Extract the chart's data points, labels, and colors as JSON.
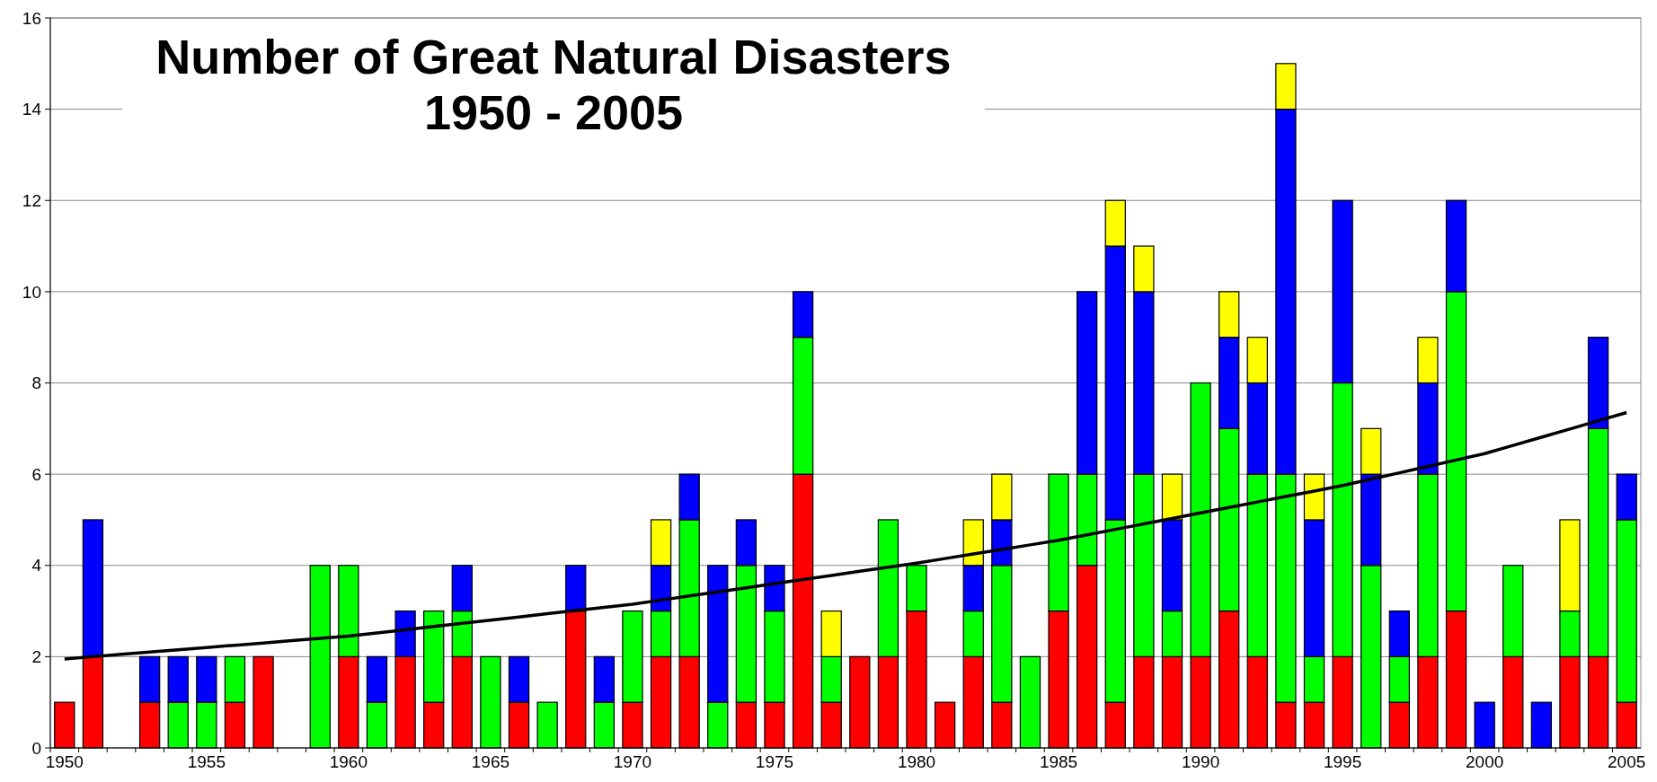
{
  "chart_data": {
    "type": "bar",
    "title": "Number of Great Natural Disasters\n1950 - 2005",
    "stacked": true,
    "grid": "y",
    "categories": [
      "1950",
      null,
      null,
      null,
      null,
      "1955",
      null,
      null,
      null,
      null,
      "1960",
      null,
      null,
      null,
      null,
      "1965",
      null,
      null,
      null,
      null,
      "1970",
      null,
      null,
      null,
      null,
      "1975",
      null,
      null,
      null,
      null,
      "1980",
      null,
      null,
      null,
      null,
      "1985",
      null,
      null,
      null,
      null,
      "1990",
      null,
      null,
      null,
      null,
      "1995",
      null,
      null,
      null,
      null,
      "2000",
      null,
      null,
      null,
      null,
      "2005"
    ],
    "ylim": [
      0,
      16
    ],
    "yticks": [
      0,
      2,
      4,
      6,
      8,
      10,
      12,
      14,
      16
    ],
    "series": [
      {
        "color": "#ff0000",
        "values": [
          1,
          2,
          0,
          1,
          0,
          0,
          1,
          2,
          0,
          0,
          2,
          0,
          2,
          1,
          2,
          0,
          1,
          0,
          3,
          0,
          1,
          2,
          2,
          0,
          1,
          1,
          6,
          1,
          2,
          2,
          3,
          1,
          2,
          1,
          0,
          3,
          4,
          1,
          2,
          2,
          2,
          3,
          2,
          1,
          1,
          2,
          0,
          1,
          2,
          3,
          0,
          2,
          0,
          2,
          2,
          1
        ]
      },
      {
        "color": "#00ff00",
        "values": [
          0,
          0,
          0,
          0,
          1,
          1,
          1,
          0,
          0,
          4,
          2,
          1,
          0,
          2,
          1,
          2,
          0,
          1,
          0,
          1,
          2,
          1,
          3,
          1,
          3,
          2,
          3,
          1,
          0,
          3,
          1,
          0,
          1,
          3,
          2,
          3,
          2,
          4,
          4,
          1,
          6,
          4,
          4,
          5,
          1,
          6,
          4,
          1,
          4,
          7,
          0,
          2,
          0,
          1,
          5,
          4
        ]
      },
      {
        "color": "#0000ff",
        "values": [
          0,
          3,
          0,
          1,
          1,
          1,
          0,
          0,
          0,
          0,
          0,
          1,
          1,
          0,
          1,
          0,
          1,
          0,
          1,
          1,
          0,
          1,
          1,
          3,
          1,
          1,
          1,
          0,
          0,
          0,
          0,
          0,
          1,
          1,
          0,
          0,
          4,
          6,
          4,
          2,
          0,
          2,
          2,
          8,
          3,
          4,
          2,
          1,
          2,
          2,
          1,
          0,
          1,
          0,
          2,
          1
        ]
      },
      {
        "color": "#ffff00",
        "values": [
          0,
          0,
          0,
          0,
          0,
          0,
          0,
          0,
          0,
          0,
          0,
          0,
          0,
          0,
          0,
          0,
          0,
          0,
          0,
          0,
          0,
          1,
          0,
          0,
          0,
          0,
          0,
          1,
          0,
          0,
          0,
          0,
          1,
          1,
          0,
          0,
          0,
          1,
          1,
          1,
          0,
          1,
          1,
          1,
          1,
          0,
          1,
          0,
          1,
          0,
          0,
          0,
          0,
          2,
          0,
          0
        ]
      },
      {
        "type": "line",
        "color": "#000000",
        "values": [
          1.95,
          2.0,
          2.05,
          2.1,
          2.15,
          2.2,
          2.25,
          2.3,
          2.35,
          2.4,
          2.45,
          2.52,
          2.59,
          2.66,
          2.73,
          2.8,
          2.87,
          2.94,
          3.01,
          3.08,
          3.15,
          3.24,
          3.33,
          3.42,
          3.51,
          3.6,
          3.69,
          3.78,
          3.87,
          3.96,
          4.05,
          4.15,
          4.25,
          4.35,
          4.45,
          4.55,
          4.67,
          4.79,
          4.91,
          5.03,
          5.15,
          5.27,
          5.39,
          5.51,
          5.63,
          5.75,
          5.89,
          6.03,
          6.17,
          6.31,
          6.45,
          6.63,
          6.81,
          6.99,
          7.17,
          7.35
        ]
      }
    ]
  }
}
